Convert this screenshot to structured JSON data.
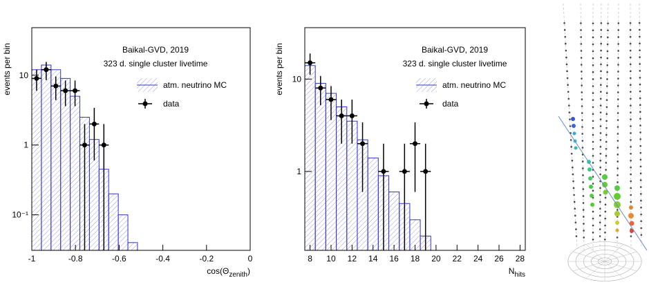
{
  "chart_data": [
    {
      "type": "histogram",
      "annotations": [
        "Baikal-GVD, 2019",
        "323 d. single cluster livetime"
      ],
      "ylabel": "events per bin",
      "xlabel": [
        "cos(Θ",
        "zenith",
        ")"
      ],
      "xlim": [
        -1,
        0
      ],
      "xticks": [
        -1,
        -0.8,
        -0.6,
        -0.4,
        -0.2,
        0
      ],
      "ylim": [
        0.031,
        48
      ],
      "log_y": true,
      "yticks": [
        {
          "value": 0.1,
          "label": "10⁻¹"
        },
        1,
        10
      ],
      "bins": [
        -1,
        -0.956,
        -0.912,
        -0.868,
        -0.824,
        -0.78,
        -0.736,
        -0.692,
        -0.648,
        -0.604,
        -0.56,
        -0.516
      ],
      "series": [
        {
          "name": "atm. neutrino MC",
          "color": "#3333cc",
          "values": [
            12,
            14,
            12,
            9,
            5,
            2.5,
            1.2,
            0.45,
            0.2,
            0.1,
            0.04
          ]
        },
        {
          "name": "data",
          "color": "#000000",
          "x": [
            -0.978,
            -0.934,
            -0.89,
            -0.846,
            -0.802,
            -0.758,
            -0.714,
            -0.67
          ],
          "xerr": 0.022,
          "values": [
            9,
            12,
            7,
            6,
            6,
            1,
            2,
            1
          ],
          "yerr": [
            3,
            3.5,
            2.6,
            2.4,
            2.4,
            1,
            1.4,
            1
          ]
        }
      ]
    },
    {
      "type": "histogram",
      "annotations": [
        "Baikal-GVD, 2019",
        "323 d. single cluster livetime"
      ],
      "ylabel": "events per bin",
      "xlabel": [
        "N",
        "hits"
      ],
      "xlim": [
        7.5,
        28.5
      ],
      "xticks": [
        8,
        10,
        12,
        14,
        16,
        18,
        20,
        22,
        24,
        26,
        28
      ],
      "ylim": [
        0.14,
        36
      ],
      "log_y": true,
      "yticks": [
        1,
        10
      ],
      "bins": [
        7.5,
        8.5,
        9.5,
        10.5,
        11.5,
        12.5,
        13.5,
        14.5,
        15.5,
        16.5,
        17.5,
        18.5,
        19.5
      ],
      "series": [
        {
          "name": "atm. neutrino MC",
          "color": "#3333cc",
          "values": [
            14,
            9,
            7,
            5,
            3.5,
            2.2,
            1.4,
            0.9,
            0.6,
            0.45,
            0.3,
            0.2
          ]
        },
        {
          "name": "data",
          "color": "#000000",
          "x": [
            8,
            9,
            10,
            11,
            12,
            13,
            15,
            17,
            18,
            19
          ],
          "xerr": 0.5,
          "values": [
            15,
            8,
            6,
            4,
            4,
            2,
            1,
            1,
            2,
            1
          ],
          "yerr": [
            3.9,
            2.8,
            2.4,
            2,
            2,
            1.4,
            1,
            1,
            1.4,
            1
          ]
        }
      ]
    }
  ]
}
